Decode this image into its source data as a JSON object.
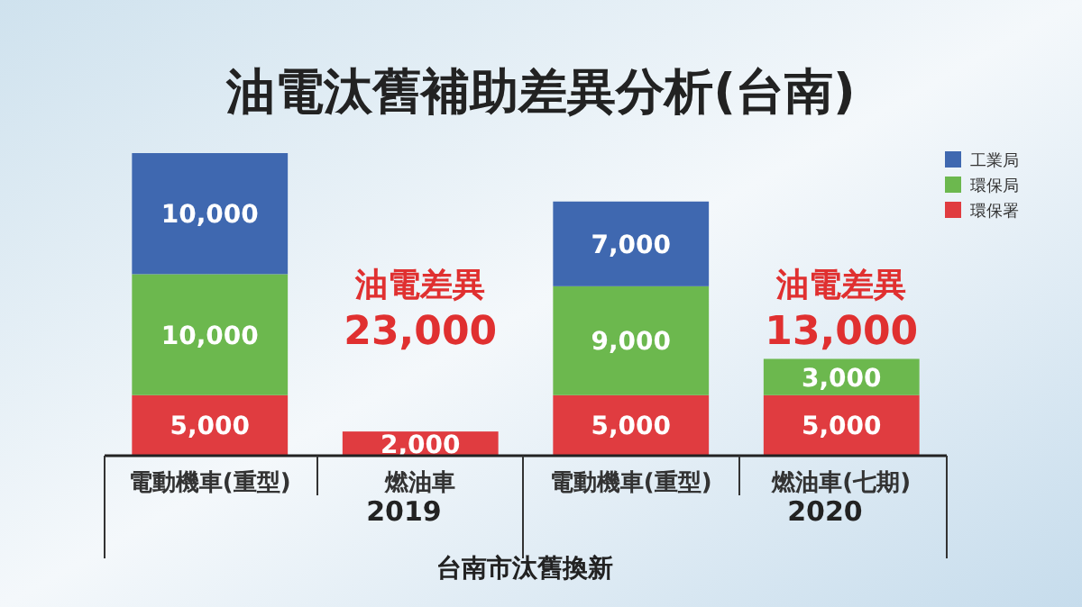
{
  "chart_data": {
    "type": "bar",
    "stacked": true,
    "title": "油電汰舊補助差異分析(台南)",
    "categories": [
      "電動機車(重型)",
      "燃油車",
      "電動機車(重型)",
      "燃油車(七期)"
    ],
    "series": [
      {
        "name": "環保署",
        "color": "#e03c40",
        "values": [
          5000,
          2000,
          5000,
          5000
        ],
        "value_labels": [
          "5,000",
          "2,000",
          "5,000",
          "5,000"
        ]
      },
      {
        "name": "環保局",
        "color": "#6cb84e",
        "values": [
          10000,
          null,
          9000,
          3000
        ],
        "value_labels": [
          "10,000",
          null,
          "9,000",
          "3,000"
        ]
      },
      {
        "name": "工業局",
        "color": "#3f68b0",
        "values": [
          10000,
          null,
          7000,
          null
        ],
        "value_labels": [
          "10,000",
          null,
          "7,000",
          null
        ]
      }
    ],
    "legend": "top right",
    "annotations": [
      "油電差異",
      "23,000",
      "油電差異",
      "13,000",
      "2019",
      "2020",
      "台南市汰舊換新"
    ]
  }
}
